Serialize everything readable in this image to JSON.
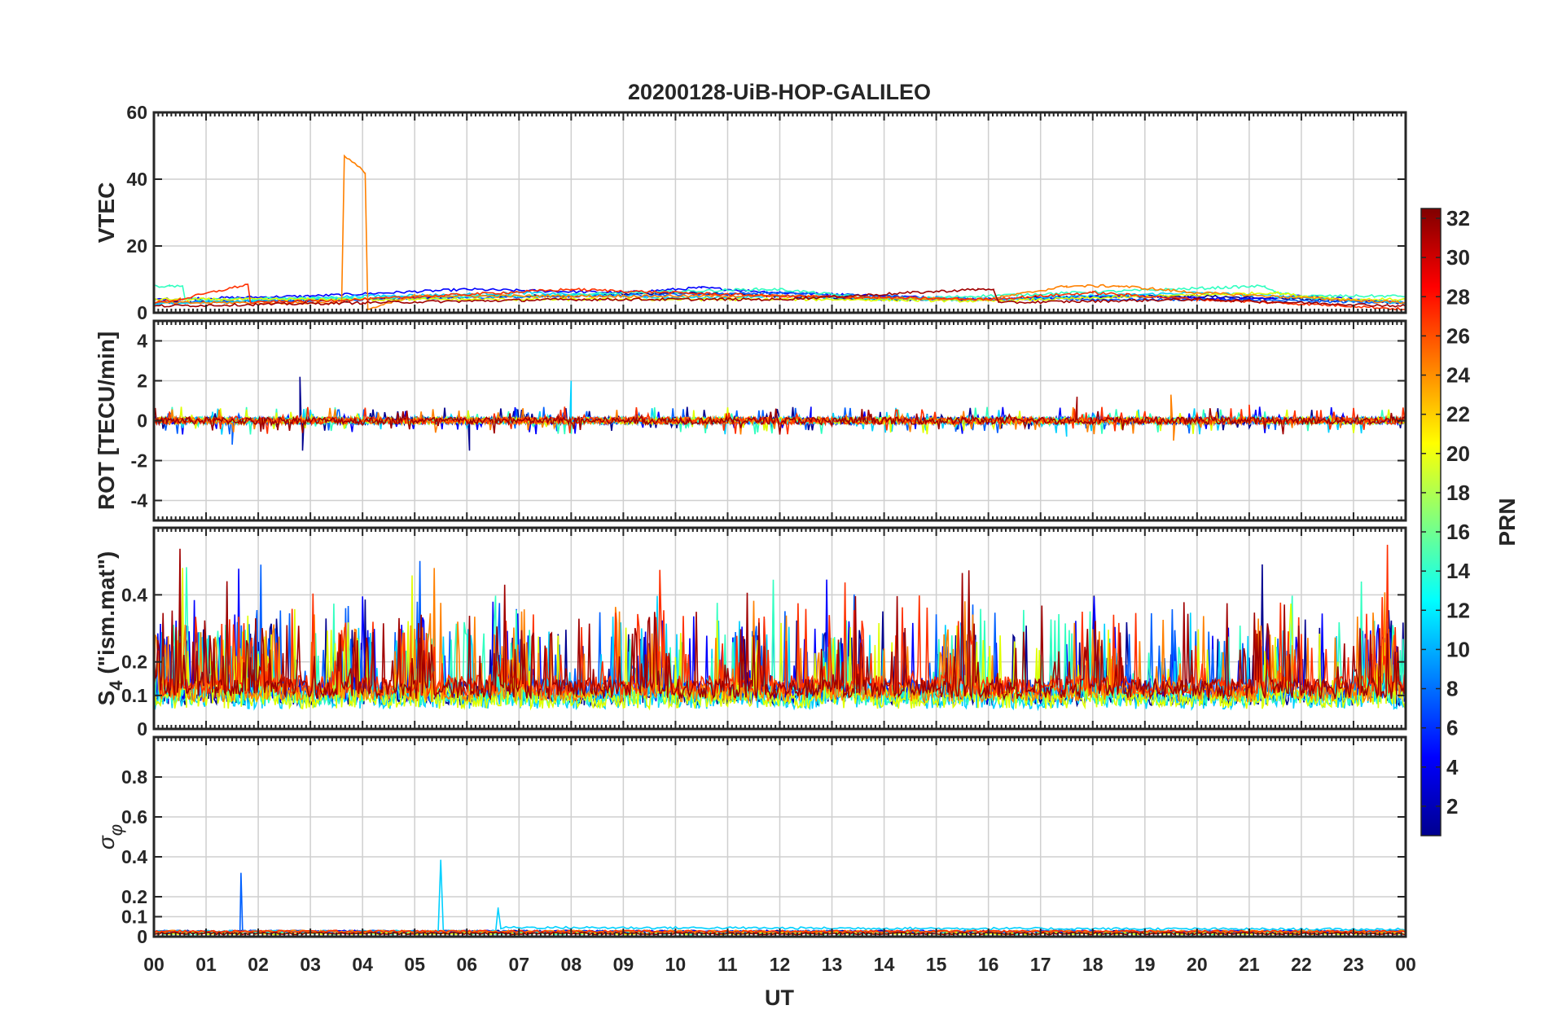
{
  "chart_data": {
    "type": "line",
    "title": "20200128-UiB-HOP-GALILEO",
    "xlabel": "UT",
    "x_tick_labels": [
      "00",
      "01",
      "02",
      "03",
      "04",
      "05",
      "06",
      "07",
      "08",
      "09",
      "10",
      "11",
      "12",
      "13",
      "14",
      "15",
      "16",
      "17",
      "18",
      "19",
      "20",
      "21",
      "22",
      "23",
      "00"
    ],
    "xlim": [
      0,
      24
    ],
    "panels": [
      {
        "name": "vtec",
        "ylabel": "VTEC",
        "ylim": [
          0,
          60
        ],
        "yticks": [
          0,
          20,
          40,
          60
        ],
        "ytick_labels": [
          "0",
          "20",
          "40",
          "60"
        ]
      },
      {
        "name": "rot",
        "ylabel": "ROT [TECU/min]",
        "ylim": [
          -5,
          5
        ],
        "yticks": [
          -4,
          -2,
          0,
          2,
          4
        ],
        "ytick_labels": [
          "-4",
          "-2",
          "0",
          "2",
          "4"
        ]
      },
      {
        "name": "s4",
        "ylabel_main": "S",
        "ylabel_sub": "4",
        "ylabel_rest": " (\"ism.mat\")",
        "ylim": [
          0,
          0.6
        ],
        "yticks": [
          0,
          0.1,
          0.2,
          0.4
        ],
        "ytick_labels": [
          "0",
          "0.1",
          "0.2",
          "0.4"
        ]
      },
      {
        "name": "sigma",
        "ylabel_main": "σ",
        "ylabel_sub": "φ",
        "ylim": [
          0,
          1
        ],
        "yticks": [
          0,
          0.1,
          0.2,
          0.4,
          0.6,
          0.8
        ],
        "ytick_labels": [
          "0",
          "0.1",
          "0.2",
          "0.4",
          "0.6",
          "0.8"
        ]
      }
    ],
    "colorbar": {
      "label": "PRN",
      "range": [
        1,
        32
      ],
      "ticks": [
        "2",
        "4",
        "6",
        "8",
        "10",
        "12",
        "14",
        "16",
        "18",
        "20",
        "22",
        "24",
        "26",
        "28",
        "30",
        "32"
      ]
    },
    "series": [
      {
        "prn": 1,
        "color": "#00008f",
        "vtec": [
          [
            0,
            3
          ],
          [
            2,
            3.5
          ],
          [
            4,
            4
          ],
          [
            6,
            5
          ],
          [
            8,
            5
          ],
          [
            10,
            6
          ],
          [
            12,
            5
          ],
          [
            14,
            4
          ],
          [
            16,
            4
          ],
          [
            18,
            5
          ],
          [
            20,
            5
          ],
          [
            22,
            4
          ],
          [
            24,
            3
          ]
        ],
        "rot": [
          [
            0,
            0
          ],
          [
            2.8,
            2.2
          ],
          [
            2.85,
            -1.5
          ],
          [
            6,
            0
          ],
          [
            6.05,
            -1.5
          ],
          [
            24,
            0
          ]
        ],
        "s4_level": 0.07,
        "sig": [
          [
            0,
            0.02
          ],
          [
            24,
            0.02
          ]
        ]
      },
      {
        "prn": 4,
        "color": "#0000ff",
        "vtec": [
          [
            0,
            4
          ],
          [
            3,
            5
          ],
          [
            6,
            7
          ],
          [
            9,
            6
          ],
          [
            10.5,
            7.5
          ],
          [
            12,
            6
          ],
          [
            14,
            5
          ],
          [
            16,
            4
          ],
          [
            19,
            5
          ],
          [
            21,
            4
          ],
          [
            22,
            5
          ],
          [
            24,
            3
          ]
        ],
        "rot": [
          [
            0,
            0
          ],
          [
            12.6,
            0.7
          ],
          [
            24,
            0
          ]
        ],
        "s4_level": 0.08,
        "sig": [
          [
            0,
            0.02
          ],
          [
            24,
            0.02
          ]
        ]
      },
      {
        "prn": 8,
        "color": "#0060ff",
        "vtec": [
          [
            0,
            3
          ],
          [
            4,
            4
          ],
          [
            8,
            5
          ],
          [
            12,
            6
          ],
          [
            16,
            4
          ],
          [
            20,
            4
          ],
          [
            24,
            3
          ]
        ],
        "rot": [
          [
            0,
            0
          ],
          [
            1.5,
            -1.2
          ],
          [
            24,
            0
          ]
        ],
        "s4_level": 0.09,
        "sig": [
          [
            0,
            0.02
          ],
          [
            1.65,
            0.02
          ],
          [
            1.67,
            0.32
          ],
          [
            1.7,
            0.02
          ],
          [
            24,
            0.02
          ]
        ]
      },
      {
        "prn": 12,
        "color": "#00d0ff",
        "vtec": [
          [
            0,
            2.5
          ],
          [
            4,
            5
          ],
          [
            6,
            5.5
          ],
          [
            7,
            6
          ],
          [
            10,
            4.5
          ],
          [
            12,
            5
          ],
          [
            14,
            4
          ],
          [
            16,
            4
          ],
          [
            20,
            6
          ],
          [
            21.5,
            5
          ],
          [
            22,
            4.5
          ],
          [
            24,
            3
          ]
        ],
        "rot": [
          [
            0,
            0
          ],
          [
            8,
            2.0
          ],
          [
            17.5,
            -0.8
          ],
          [
            24,
            0
          ]
        ],
        "s4_level": 0.06,
        "sig": [
          [
            0,
            0.02
          ],
          [
            5.45,
            0.02
          ],
          [
            5.5,
            0.38
          ],
          [
            5.55,
            0.02
          ],
          [
            6.55,
            0.02
          ],
          [
            6.6,
            0.14
          ],
          [
            6.65,
            0.04
          ],
          [
            24,
            0.03
          ]
        ]
      },
      {
        "prn": 15,
        "color": "#30ffc0",
        "vtec": [
          [
            0.3,
            8
          ],
          [
            0.55,
            8
          ],
          [
            0.6,
            4
          ],
          [
            7,
            5
          ],
          [
            11.5,
            7
          ],
          [
            12,
            7
          ],
          [
            14,
            4
          ],
          [
            21.3,
            8
          ],
          [
            21.5,
            6
          ],
          [
            22,
            5
          ]
        ],
        "rot": [
          [
            0,
            0
          ],
          [
            24,
            0
          ]
        ],
        "s4_level": 0.07,
        "sig": [
          [
            0,
            0.01
          ],
          [
            24,
            0.01
          ]
        ]
      },
      {
        "prn": 20,
        "color": "#e0ff00",
        "vtec": [
          [
            13,
            4
          ],
          [
            16,
            3.5
          ],
          [
            21.5,
            6
          ],
          [
            22,
            5
          ],
          [
            23,
            4
          ]
        ],
        "rot": [
          [
            0,
            0
          ],
          [
            24,
            0
          ]
        ],
        "s4_level": 0.06,
        "sig": [
          [
            0,
            0.01
          ],
          [
            24,
            0.01
          ]
        ]
      },
      {
        "prn": 23,
        "color": "#ff8000",
        "vtec": [
          [
            3.6,
            3
          ],
          [
            3.65,
            47
          ],
          [
            4.05,
            42
          ],
          [
            4.1,
            1
          ],
          [
            5,
            5
          ],
          [
            8,
            5
          ],
          [
            12,
            5
          ],
          [
            16,
            4
          ],
          [
            17.5,
            8
          ],
          [
            18.5,
            8
          ],
          [
            20,
            6
          ],
          [
            24,
            3
          ]
        ],
        "rot": [
          [
            0,
            0
          ],
          [
            19.5,
            1.3
          ],
          [
            19.55,
            -1.0
          ],
          [
            24,
            0
          ]
        ],
        "s4_level": 0.08,
        "sig": [
          [
            0,
            0.02
          ],
          [
            24,
            0.02
          ]
        ]
      },
      {
        "prn": 27,
        "color": "#ff3000",
        "vtec": [
          [
            0,
            3
          ],
          [
            0.5,
            4
          ],
          [
            1.8,
            8.5
          ],
          [
            1.85,
            3
          ],
          [
            4,
            4
          ],
          [
            8,
            7
          ],
          [
            12,
            5
          ],
          [
            16,
            4
          ],
          [
            18,
            6
          ],
          [
            20,
            4
          ],
          [
            23,
            2
          ],
          [
            24,
            1
          ]
        ],
        "rot": [
          [
            0,
            0
          ],
          [
            21,
            0.8
          ],
          [
            24,
            0
          ]
        ],
        "s4_level": 0.1,
        "sig": [
          [
            0,
            0.02
          ],
          [
            24,
            0.02
          ]
        ]
      },
      {
        "prn": 31,
        "color": "#a00000",
        "vtec": [
          [
            0,
            2
          ],
          [
            4,
            3
          ],
          [
            8,
            4
          ],
          [
            12,
            4
          ],
          [
            15.8,
            7
          ],
          [
            16.1,
            7
          ],
          [
            16.2,
            3
          ],
          [
            20,
            4
          ],
          [
            24,
            2
          ]
        ],
        "rot": [
          [
            0,
            0
          ],
          [
            17.7,
            1.2
          ],
          [
            24,
            0
          ]
        ],
        "s4_level": 0.09,
        "sig": [
          [
            0,
            0.01
          ],
          [
            24,
            0.01
          ]
        ]
      }
    ]
  }
}
